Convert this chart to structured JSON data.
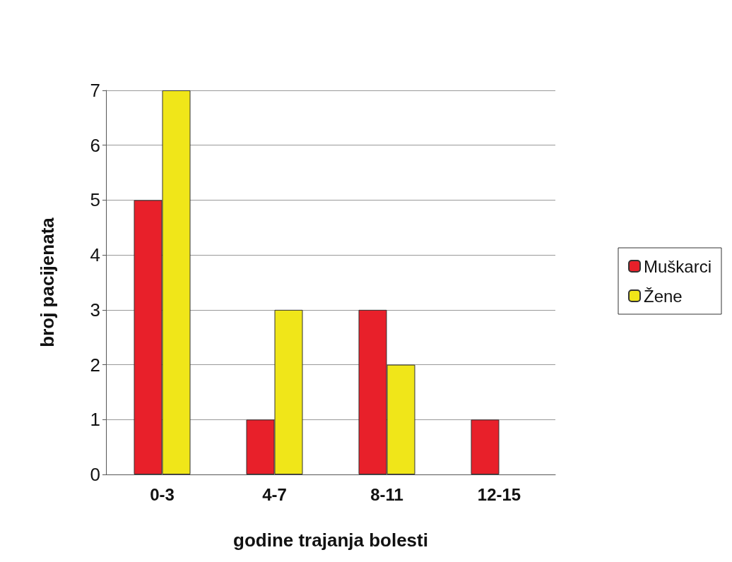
{
  "chart_data": {
    "type": "bar",
    "xlabel": "godine trajanja bolesti",
    "ylabel": "broj pacijenata",
    "categories": [
      "0-3",
      "4-7",
      "8-11",
      "12-15"
    ],
    "series": [
      {
        "name": "Muškarci",
        "color": "#e8202a",
        "values": [
          5,
          1,
          3,
          1
        ]
      },
      {
        "name": "Žene",
        "color": "#f0e619",
        "values": [
          7,
          3,
          2,
          null
        ]
      }
    ],
    "ylim": [
      0,
      7
    ],
    "yticks": [
      0,
      1,
      2,
      3,
      4,
      5,
      6,
      7
    ],
    "grid": "y",
    "legend": "right"
  }
}
